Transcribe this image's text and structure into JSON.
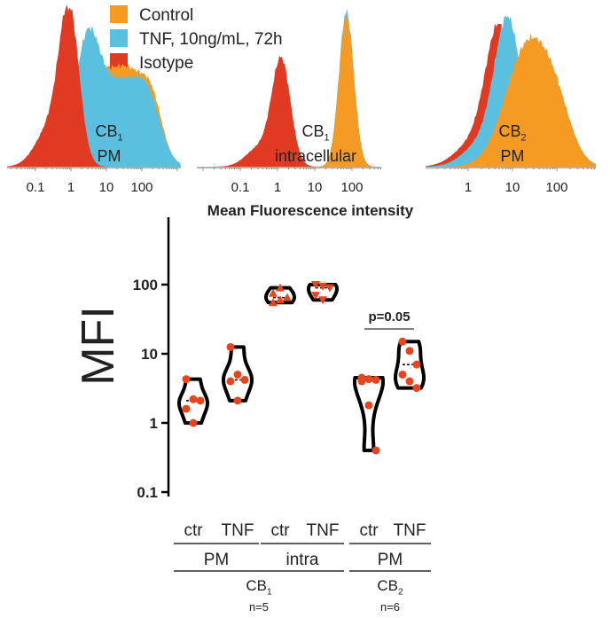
{
  "colors": {
    "control": "#f59a23",
    "tnf": "#5bc0e0",
    "isotype": "#e03a22",
    "points": "#e8451e",
    "violin": "#000000"
  },
  "legend": [
    {
      "label": "Control",
      "color_key": "control"
    },
    {
      "label": "TNF, 10ng/mL, 72h",
      "color_key": "tnf"
    },
    {
      "label": "Isotype",
      "color_key": "isotype"
    }
  ],
  "histograms": [
    {
      "label_main": "CB",
      "label_sub": "1",
      "label_line2": "PM",
      "ticks": [
        "0.1",
        "1",
        "10",
        "100"
      ],
      "series": [
        {
          "key": "control",
          "components": [
            [
              0.6,
              0.45,
              0.55
            ],
            [
              1.6,
              0.5,
              0.6
            ],
            [
              2.3,
              0.3,
              0.3
            ]
          ]
        },
        {
          "key": "tnf",
          "components": [
            [
              0.45,
              0.35,
              0.75
            ],
            [
              1.4,
              0.6,
              0.55
            ],
            [
              2.2,
              0.35,
              0.3
            ]
          ]
        },
        {
          "key": "isotype",
          "components": [
            [
              -0.05,
              0.28,
              1.0
            ],
            [
              -0.6,
              0.4,
              0.25
            ]
          ]
        }
      ]
    },
    {
      "label_main": "CB",
      "label_sub": "1",
      "label_line2": "intracellular",
      "ticks": [
        "0.1",
        "1",
        "10",
        "100"
      ],
      "series": [
        {
          "key": "tnf",
          "components": [
            [
              1.85,
              0.2,
              1.0
            ]
          ]
        },
        {
          "key": "control",
          "components": [
            [
              1.85,
              0.2,
              0.97
            ]
          ]
        },
        {
          "key": "isotype",
          "components": [
            [
              0.1,
              0.25,
              0.68
            ],
            [
              -0.5,
              0.35,
              0.12
            ]
          ]
        }
      ]
    },
    {
      "label_main": "CB",
      "label_sub": "2",
      "label_line2": "PM",
      "ticks": [
        "1",
        "10",
        "100"
      ],
      "series": [
        {
          "key": "isotype",
          "components": [
            [
              0.7,
              0.3,
              0.9
            ],
            [
              0.1,
              0.4,
              0.15
            ]
          ]
        },
        {
          "key": "tnf",
          "components": [
            [
              0.9,
              0.3,
              0.95
            ],
            [
              0.3,
              0.4,
              0.15
            ]
          ]
        },
        {
          "key": "control",
          "components": [
            [
              1.35,
              0.5,
              0.8
            ],
            [
              2.0,
              0.35,
              0.25
            ]
          ]
        }
      ]
    }
  ],
  "hist_xlabel": "Mean Fluorescence intensity",
  "chart_data": {
    "type": "violin",
    "title": "Mean Fluorescence intensity",
    "ylabel": "MFI",
    "yscale": "log",
    "ylim": [
      0.1,
      1000
    ],
    "yticks": [
      "0.1",
      "1",
      "10",
      "100"
    ],
    "groups": [
      {
        "label": "ctr",
        "sub": "PM",
        "receptor": "CB1",
        "marker": "circle",
        "values": [
          4.3,
          2.2,
          2.1,
          1.6,
          1.0
        ]
      },
      {
        "label": "TNF",
        "sub": "PM",
        "receptor": "CB1",
        "marker": "circle",
        "values": [
          12.5,
          5.0,
          4.2,
          4.0,
          2.1
        ]
      },
      {
        "label": "ctr",
        "sub": "intra",
        "receptor": "CB1",
        "marker": "triangle-up",
        "values": [
          55,
          60,
          65,
          75,
          90
        ]
      },
      {
        "label": "TNF",
        "sub": "intra",
        "receptor": "CB1",
        "marker": "triangle-down",
        "values": [
          100,
          95,
          90,
          70,
          60
        ]
      },
      {
        "label": "ctr",
        "sub": "PM",
        "receptor": "CB2",
        "marker": "circle",
        "values": [
          4.5,
          4.3,
          4.2,
          4.0,
          1.8,
          0.4
        ]
      },
      {
        "label": "TNF",
        "sub": "PM",
        "receptor": "CB2",
        "marker": "circle",
        "values": [
          15,
          11,
          7,
          5,
          4,
          3.2
        ]
      }
    ],
    "annotations": [
      {
        "text": "p=0.05",
        "between": [
          4,
          5
        ]
      }
    ],
    "sublabels": [
      "PM",
      "intra",
      "PM"
    ],
    "receptors": [
      {
        "main": "CB",
        "sub": "1",
        "n": "n=5"
      },
      {
        "main": "CB",
        "sub": "2",
        "n": "n=6"
      }
    ]
  }
}
